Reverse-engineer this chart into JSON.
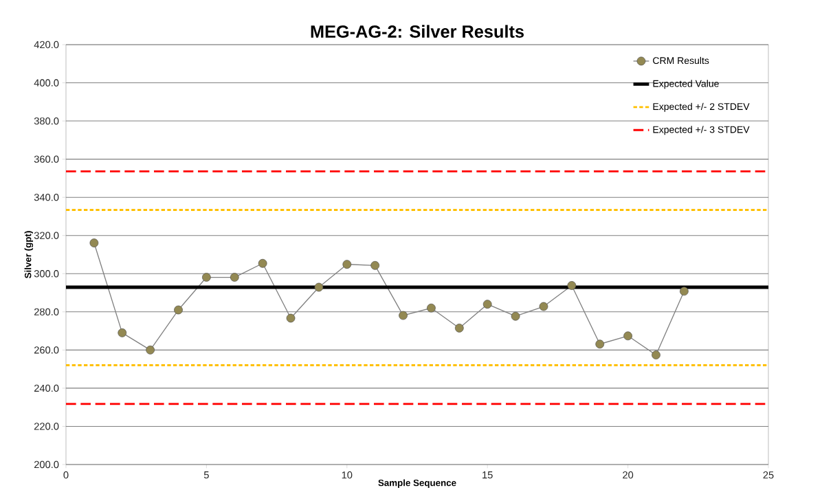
{
  "chart_data": {
    "type": "line",
    "title": "MEG-AG-2: Silver Results",
    "xlabel": "Sample Sequence",
    "ylabel": "Silver (gpt)",
    "x": [
      1,
      2,
      3,
      4,
      5,
      6,
      7,
      8,
      9,
      10,
      11,
      12,
      13,
      14,
      15,
      16,
      17,
      18,
      19,
      20,
      21,
      22
    ],
    "series": [
      {
        "name": "CRM Results",
        "color": "#938953",
        "marker": "circle",
        "line_style": "solid",
        "values": [
          316.1,
          269.0,
          260.0,
          281.0,
          298.1,
          298.1,
          305.4,
          276.7,
          292.9,
          304.9,
          304.3,
          278.1,
          282.0,
          271.5,
          284.0,
          277.7,
          282.8,
          293.8,
          263.1,
          267.4,
          257.4,
          290.8
        ]
      }
    ],
    "ref_lines": [
      {
        "axis": "y",
        "value": 292.9,
        "label": "Expected Value",
        "color": "#000000",
        "line_style": "solid"
      },
      {
        "axis": "y",
        "value": 333.4,
        "label": "Expected +/- 2 STDEV",
        "color": "#ffc000",
        "line_style": "dotted"
      },
      {
        "axis": "y",
        "value": 252.0,
        "color": "#ffc000",
        "line_style": "dotted"
      },
      {
        "axis": "y",
        "value": 353.6,
        "label": "Expected +/- 3 STDEV",
        "color": "#ff0000",
        "line_style": "dashed"
      },
      {
        "axis": "y",
        "value": 231.8,
        "color": "#ff0000",
        "line_style": "dashed"
      }
    ],
    "xlim": [
      0,
      25
    ],
    "xticks": [
      0,
      5,
      10,
      15,
      20,
      25
    ],
    "ylim": [
      200,
      420
    ],
    "yticks": [
      {
        "value": 200,
        "label": "200.0"
      },
      {
        "value": 220,
        "label": "220.0"
      },
      {
        "value": 240,
        "label": "240.0"
      },
      {
        "value": 260,
        "label": "260.0"
      },
      {
        "value": 280,
        "label": "280.0"
      },
      {
        "value": 300,
        "label": "300.0"
      },
      {
        "value": 320,
        "label": "320.0"
      },
      {
        "value": 340,
        "label": "340.0"
      },
      {
        "value": 360,
        "label": "360.0"
      },
      {
        "value": 380,
        "label": "380.0"
      },
      {
        "value": 400,
        "label": "400.0"
      },
      {
        "value": 420,
        "label": "420.0"
      }
    ],
    "grid": "y",
    "legend": "top right"
  }
}
